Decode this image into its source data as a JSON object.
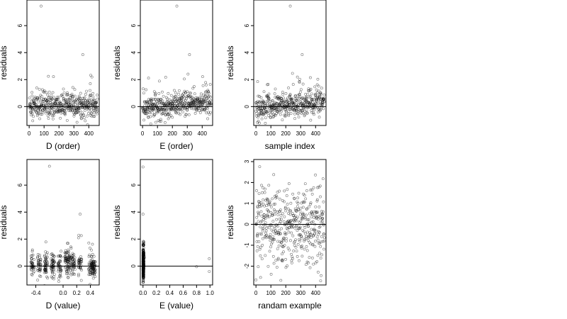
{
  "chart_data": [
    {
      "type": "scatter",
      "xlabel": "D (order)",
      "ylabel": "residuals",
      "x_ticks": [
        "0",
        "100",
        "200",
        "300",
        "400"
      ],
      "y_ticks": [
        "0",
        "2",
        "4",
        "6"
      ],
      "xlim": [
        -15,
        470
      ],
      "ylim": [
        -1.4,
        7.9
      ],
      "hline": 0,
      "series": [
        {
          "outliers": [
            [
              80,
              7.45
            ],
            [
              360,
              3.85
            ]
          ],
          "n": 460,
          "trend": "none"
        }
      ]
    },
    {
      "type": "scatter",
      "xlabel": "E (order)",
      "ylabel": "residuals",
      "x_ticks": [
        "0",
        "100",
        "200",
        "300",
        "400"
      ],
      "y_ticks": [
        "0",
        "2",
        "4",
        "6"
      ],
      "xlim": [
        -15,
        470
      ],
      "ylim": [
        -1.4,
        7.9
      ],
      "hline": 0,
      "series": [
        {
          "outliers": [
            [
              230,
              7.45
            ],
            [
              315,
              3.85
            ]
          ],
          "n": 460,
          "trend": "increasing"
        }
      ]
    },
    {
      "type": "scatter",
      "xlabel": "sample index",
      "ylabel": "residuals",
      "x_ticks": [
        "0",
        "100",
        "200",
        "300",
        "400"
      ],
      "y_ticks": [
        "0",
        "2",
        "4",
        "6"
      ],
      "xlim": [
        -15,
        470
      ],
      "ylim": [
        -1.4,
        7.9
      ],
      "hline": 0,
      "series": [
        {
          "outliers": [
            [
              230,
              7.45
            ],
            [
              310,
              3.85
            ]
          ],
          "n": 460,
          "trend": "increasing"
        }
      ]
    },
    {
      "type": "scatter",
      "xlabel": "D (value)",
      "ylabel": "residuals",
      "x_ticks": [
        "-0.4",
        "0.0",
        "0.2",
        "0.4"
      ],
      "x_tick_values": [
        -0.4,
        0.0,
        0.2,
        0.4
      ],
      "y_ticks": [
        "0",
        "2",
        "4",
        "6"
      ],
      "xlim": [
        -0.53,
        0.53
      ],
      "ylim": [
        -1.4,
        7.9
      ],
      "hline": 0,
      "series": [
        {
          "outliers": [
            [
              -0.2,
              7.4
            ],
            [
              0.25,
              3.85
            ]
          ],
          "clusters": [
            -0.45,
            -0.35,
            -0.25,
            -0.15,
            -0.05,
            0.05,
            0.1,
            0.15,
            0.25,
            0.4,
            0.45
          ],
          "n": 460
        }
      ]
    },
    {
      "type": "scatter",
      "xlabel": "E (value)",
      "ylabel": "residuals",
      "x_ticks": [
        "0.0",
        "0.2",
        "0.4",
        "0.6",
        "0.8",
        "1.0"
      ],
      "x_tick_values": [
        0.0,
        0.2,
        0.4,
        0.6,
        0.8,
        1.0
      ],
      "y_ticks": [
        "0",
        "2",
        "4",
        "6"
      ],
      "xlim": [
        -0.04,
        1.04
      ],
      "ylim": [
        -1.4,
        7.9
      ],
      "hline": 0,
      "series": [
        {
          "outliers": [
            [
              0.0,
              7.35
            ],
            [
              0.0,
              3.85
            ],
            [
              0.8,
              -0.05
            ],
            [
              0.99,
              0.55
            ],
            [
              0.99,
              -0.4
            ]
          ],
          "cluster_x": 0.0,
          "n": 455
        }
      ]
    },
    {
      "type": "scatter",
      "xlabel": "randam example",
      "ylabel": "residuals",
      "x_ticks": [
        "0",
        "100",
        "200",
        "300",
        "400"
      ],
      "y_ticks": [
        "-2",
        "-1",
        "0",
        "1",
        "2",
        "3"
      ],
      "xlim": [
        -15,
        470
      ],
      "ylim": [
        -2.9,
        3.1
      ],
      "hline": 0,
      "series": [
        {
          "n": 460,
          "distribution": "standard normal"
        }
      ]
    }
  ]
}
